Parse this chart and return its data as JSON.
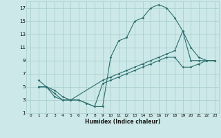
{
  "xlabel": "Humidex (Indice chaleur)",
  "bg_color": "#cce8e8",
  "grid_color": "#aacece",
  "line_color": "#2d6e6e",
  "xlim": [
    -0.5,
    23.5
  ],
  "ylim": [
    1,
    18
  ],
  "xticks": [
    0,
    1,
    2,
    3,
    4,
    5,
    6,
    7,
    8,
    9,
    10,
    11,
    12,
    13,
    14,
    15,
    16,
    17,
    18,
    19,
    20,
    21,
    22,
    23
  ],
  "yticks": [
    1,
    3,
    5,
    7,
    9,
    11,
    13,
    15,
    17
  ],
  "line1_x": [
    1,
    2,
    3,
    4,
    5,
    6,
    7,
    8,
    9,
    10,
    11,
    12,
    13,
    14,
    15,
    16,
    17,
    18,
    19,
    20,
    21,
    22,
    23
  ],
  "line1_y": [
    6,
    5,
    4.5,
    3.5,
    3,
    3,
    2.5,
    2,
    2,
    9.5,
    12,
    12.5,
    15,
    15.5,
    17,
    17.5,
    17,
    15.5,
    13.5,
    11,
    9.5,
    9,
    9
  ],
  "line2_x": [
    1,
    2,
    3,
    4,
    5,
    9,
    10,
    11,
    12,
    13,
    14,
    15,
    16,
    17,
    18,
    19,
    20,
    21,
    22,
    23
  ],
  "line2_y": [
    5,
    5,
    4,
    3,
    3,
    6,
    6.5,
    7,
    7.5,
    8,
    8.5,
    9,
    9.5,
    10,
    10.5,
    13.5,
    9,
    9,
    9,
    9
  ],
  "line3_x": [
    1,
    2,
    3,
    4,
    5,
    6,
    7,
    8,
    9,
    10,
    11,
    12,
    13,
    14,
    15,
    16,
    17,
    18,
    19,
    20,
    21,
    22,
    23
  ],
  "line3_y": [
    5,
    5,
    3.5,
    3,
    3,
    3,
    2.5,
    2,
    5.5,
    6,
    6.5,
    7,
    7.5,
    8,
    8.5,
    9,
    9.5,
    9.5,
    8,
    8,
    8.5,
    9,
    9
  ]
}
